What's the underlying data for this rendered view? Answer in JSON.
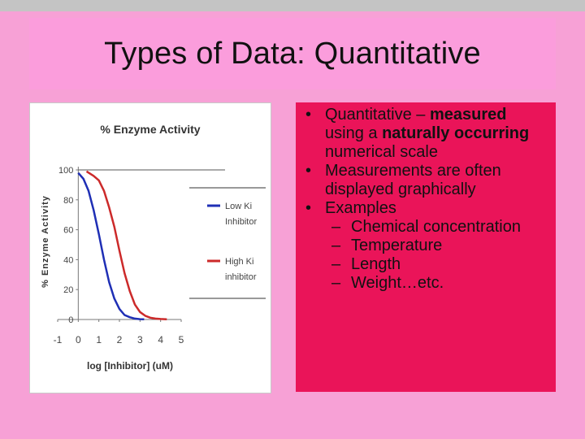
{
  "slide": {
    "title": "Types of Data: Quantitative"
  },
  "bullets": {
    "b1": {
      "text_pre": "Quantitative – ",
      "bold1": "measured",
      "mid1": " using a ",
      "bold2": "naturally occurring",
      "tail": " numerical scale"
    },
    "b2": "Measurements are often displayed graphically",
    "b3": "Examples",
    "sub_items": [
      "Chemical concentration",
      "Temperature",
      "Length",
      "Weight…etc."
    ]
  },
  "colors": {
    "low_series": "#1f2fb5",
    "high_series": "#cc2a2a",
    "text_panel": "#ea1459",
    "title_band": "#fb9ddc"
  },
  "chart_data": {
    "type": "line",
    "title": "% Enzyme Activity",
    "xlabel": "log [Inhibitor] (uM)",
    "ylabel": "% Enzyme Activity",
    "xlim": [
      -1,
      5
    ],
    "ylim": [
      0,
      100
    ],
    "x_ticks": [
      "-1",
      "0",
      "1",
      "2",
      "3",
      "4",
      "5"
    ],
    "y_ticks": [
      "0",
      "20",
      "40",
      "60",
      "80",
      "100"
    ],
    "grid": false,
    "legend_position": "right",
    "series": [
      {
        "name": "Low Ki Inhibitor",
        "legend_lines": [
          "Low Ki",
          "Inhibitor"
        ],
        "color": "#1f2fb5",
        "x": [
          0.0,
          0.25,
          0.5,
          0.75,
          1.0,
          1.25,
          1.5,
          1.75,
          2.0,
          2.25,
          2.5,
          2.75,
          3.0,
          3.2
        ],
        "y": [
          98,
          94,
          86,
          73,
          57,
          40,
          25,
          14,
          7,
          3,
          1.5,
          0.6,
          0.2,
          0.1
        ]
      },
      {
        "name": "High Ki Inhibitor",
        "legend_lines": [
          "High Ki",
          "inhibitor"
        ],
        "color": "#cc2a2a",
        "x": [
          0.4,
          0.75,
          1.0,
          1.25,
          1.5,
          1.75,
          2.0,
          2.25,
          2.5,
          2.75,
          3.0,
          3.25,
          3.5,
          3.75,
          4.0,
          4.3
        ],
        "y": [
          99,
          96,
          93,
          86,
          75,
          62,
          46,
          31,
          19,
          10,
          5,
          2.5,
          1.2,
          0.6,
          0.3,
          0.1
        ]
      }
    ]
  }
}
